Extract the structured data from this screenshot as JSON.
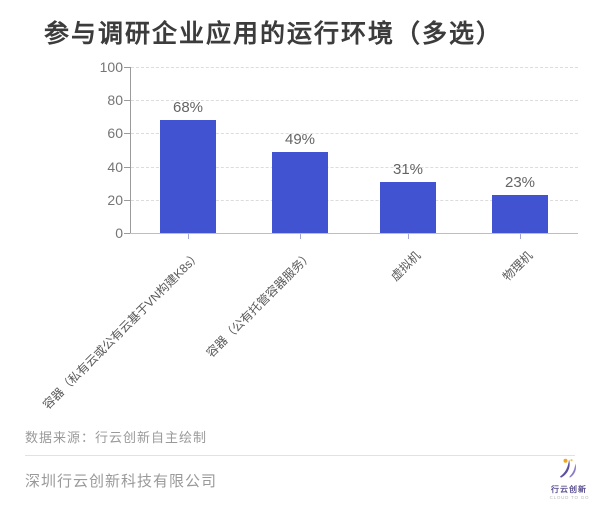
{
  "title": "参与调研企业应用的运行环境（多选）",
  "chart_data": {
    "type": "bar",
    "title": "参与调研企业应用的运行环境（多选）",
    "categories": [
      "容器（私有云或公有云基于VN构建K8s）",
      "容器（公有托管容器服务）",
      "虚拟机",
      "物理机"
    ],
    "values": [
      68,
      49,
      31,
      23
    ],
    "data_labels": [
      "68%",
      "49%",
      "31%",
      "23%"
    ],
    "ylim": [
      0,
      100
    ],
    "y_ticks": [
      0,
      20,
      40,
      60,
      80,
      100
    ],
    "grid": "horizontal-dashed",
    "legend": "none",
    "xlabel": "",
    "ylabel": "",
    "bar_color": "#4153D0"
  },
  "colors": {
    "bar": "#4153D0",
    "title_text": "#3C3C3C",
    "axis_text": "#757575",
    "category_text": "#595959",
    "value_text": "#646464",
    "gridline": "#DCDCDC",
    "x_axis_line": "#B6BCDD",
    "footer_text": "#9A9A9A"
  },
  "footer": {
    "source_note": "数据来源：行云创新自主绘制",
    "company_name": "深圳行云创新科技有限公司",
    "logo": {
      "icon": "swoosh-bird-logo",
      "brand_name": "行云创新",
      "brand_subtext": "CLOUD TO GO",
      "primary_color": "#5B4FA0",
      "accent_color": "#F0A818"
    }
  }
}
